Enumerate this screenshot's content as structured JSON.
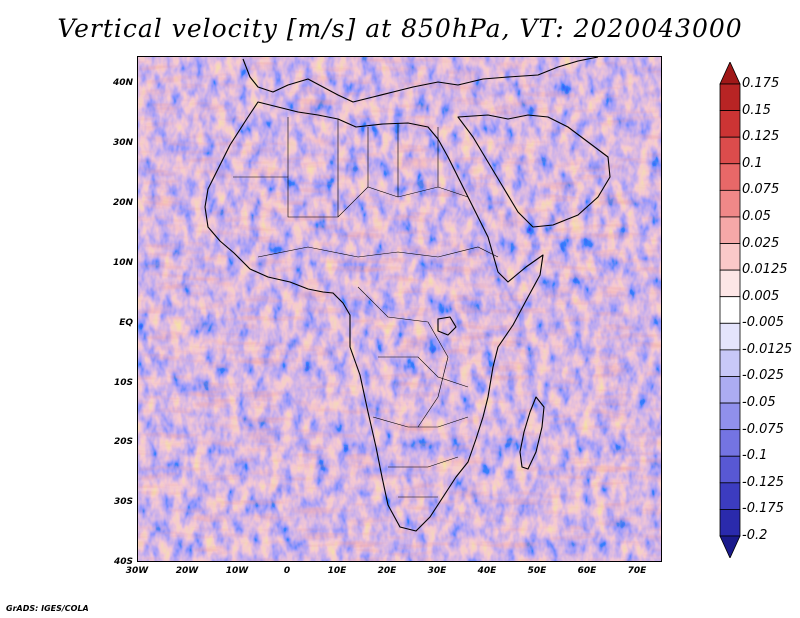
{
  "title": "Vertical velocity [m/s] at 850hPa, VT: 2020043000",
  "map": {
    "lat_labels": [
      "40N",
      "30N",
      "20N",
      "10N",
      "EQ",
      "10S",
      "20S",
      "30S",
      "40S"
    ],
    "lon_labels": [
      "30W",
      "20W",
      "10W",
      "0",
      "10E",
      "20E",
      "30E",
      "40E",
      "50E",
      "60E",
      "70E"
    ],
    "colors": {
      "land_outline": "#000000",
      "upward": "#d24a4a",
      "downward": "#6a6ae0"
    }
  },
  "colorbar": {
    "levels": [
      "0.175",
      "0.15",
      "0.125",
      "0.1",
      "0.075",
      "0.05",
      "0.025",
      "0.0125",
      "0.005",
      "-0.005",
      "-0.0125",
      "-0.025",
      "-0.05",
      "-0.075",
      "-0.1",
      "-0.125",
      "-0.175",
      "-0.2"
    ],
    "colors": [
      "#a01818",
      "#b82424",
      "#cc3434",
      "#dc4c4c",
      "#e86868",
      "#f08888",
      "#f6a8a8",
      "#fac8c8",
      "#fde6e6",
      "#ffffff",
      "#e4e4fc",
      "#c8c8f8",
      "#acacf2",
      "#9090ec",
      "#7474e2",
      "#5858d4",
      "#3c3cc0",
      "#2a2aac",
      "#1a1a8c"
    ]
  },
  "footer": "GrADS: IGES/COLA"
}
